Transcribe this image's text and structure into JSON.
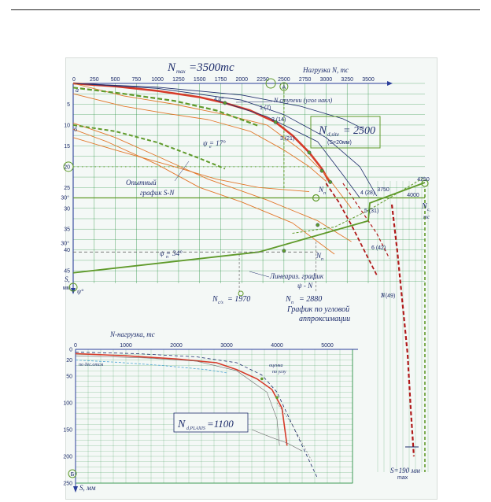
{
  "chart_data": [
    {
      "id": "upper",
      "type": "line",
      "title": "N_max = 3500тс",
      "xlabel": "Нагрузка N, тс",
      "ylabel": "S, мм",
      "x_ticks": [
        0,
        250,
        500,
        750,
        1000,
        1250,
        1500,
        1750,
        2000,
        2250,
        2500,
        2750,
        3000,
        3250,
        3500
      ],
      "y_ticks": [
        0,
        5,
        10,
        15,
        20,
        25,
        30,
        35,
        40,
        45
      ],
      "xlim": [
        0,
        3500
      ],
      "ylim": [
        0,
        48
      ],
      "right_y_ticks_label": "S",
      "y_ticks_extra": [
        "30°",
        "30°"
      ],
      "annotations": {
        "nmax": "N",
        "nmax_sub": "max",
        "nmax_val": "=3500тс",
        "step_label": "N ступени (угол накл)",
        "nd_site_box": "N",
        "nd_site_sub": "d,site",
        "nd_site_val": "= 2500",
        "nd_site_note": "(S=20мм)",
        "psi_e": "ψ  = 17°",
        "psi_e_sub": "е",
        "psi_n": "ψ  = 34°",
        "psi_n_sub": "п",
        "experimental": "Опытный",
        "experimental2": "график S-N",
        "linear": "Линеариз. график",
        "linear2": "ψ - N",
        "nc": "N",
        "nc_sub": "c/s",
        "nc_val": "= 1970",
        "nn": "N",
        "nn_sub": "п",
        "nn_val": "= 2880",
        "angle_graph": "График по угловой",
        "angle_graph2": "аппроксимации",
        "psi_axis": "ψ°",
        "s_axis": "S,",
        "mm": "мм",
        "a_label": "a",
        "b_label": "б",
        "circle_a": "A",
        "circle_20": "20",
        "val_4250": "4250",
        "val_4000": "4000",
        "val_3750": "3750",
        "nc_right": "N",
        "nc_right_sub": "c,",
        "nc_right_unit": "тс",
        "nn_label": "N",
        "nn_label_sub": "п",
        "nh_label": "N",
        "nh_label_sub": "н",
        "s190": "S=190 мм",
        "s190_sub": "max",
        "psi_small": "ψ°",
        "step_numbers": [
          "1 (7)",
          "2 (14)",
          "3 (21)",
          "4 (28)",
          "5 (31)",
          "6 (42)",
          "7 (49)"
        ]
      }
    },
    {
      "id": "lower",
      "type": "line",
      "title": "",
      "xlabel": "N-нагрузка, тс",
      "ylabel": "S, мм",
      "x_ticks": [
        0,
        1000,
        2000,
        3000,
        4000,
        5000
      ],
      "y_ticks": [
        0,
        20,
        50,
        100,
        150,
        200,
        250
      ],
      "xlim": [
        0,
        5500
      ],
      "ylim": [
        0,
        250
      ],
      "annotations": {
        "nd_plaxis": "N",
        "nd_plaxis_sub": "d,PLAXIS",
        "nd_plaxis_val": "=1100",
        "left_label": "по дес.отсм",
        "right_label": "оценка",
        "right_label2": "по углу",
        "b_circle": "Б"
      }
    }
  ],
  "colors": {
    "axis": "#2a3e9a",
    "grid": "#1f8d3a",
    "red": "#d63b2a",
    "dark_red": "#b01a1a",
    "orange": "#e2772a",
    "green": "#5f9a2a",
    "gray": "#6c6c6c",
    "blue": "#1d2c6b",
    "light_blue": "#4aa3d4"
  }
}
